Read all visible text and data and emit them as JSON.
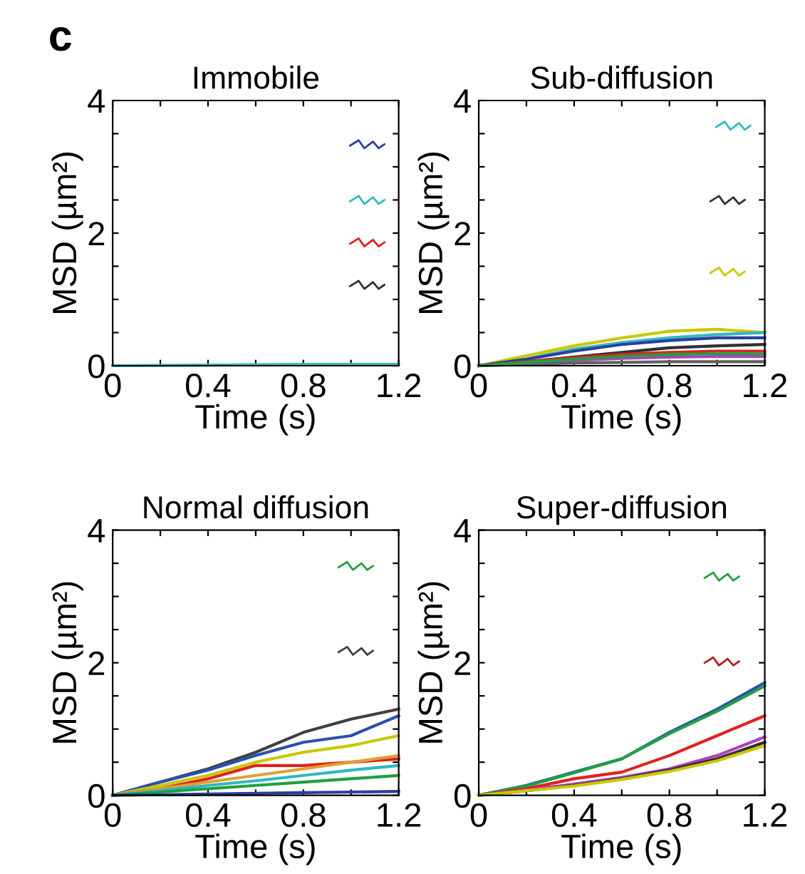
{
  "chart_data": [
    {
      "type": "line",
      "title": "Immobile",
      "xlabel": "Time (s)",
      "ylabel": "MSD (µm²)",
      "annotations": [
        "c"
      ],
      "xlim": [
        0,
        1.2
      ],
      "ylim": [
        0,
        4
      ],
      "xticks": [
        0,
        {
          "value": 0.2,
          "label": null
        },
        0.4,
        {
          "value": 0.6,
          "label": null
        },
        0.8,
        {
          "value": 1.0,
          "label": null
        },
        1.2
      ],
      "yticks": [
        0,
        {
          "value": 0.5,
          "label": null
        },
        {
          "value": 1,
          "label": null
        },
        {
          "value": 1.5,
          "label": null
        },
        2,
        {
          "value": 2.5,
          "label": null
        },
        {
          "value": 3,
          "label": null
        },
        {
          "value": 3.5,
          "label": null
        },
        4
      ],
      "grid": false,
      "x": [
        0,
        0.4,
        0.8,
        1.2
      ],
      "series": [
        {
          "color": "#30b8c0",
          "values": [
            0,
            0.01,
            0.02,
            0.02
          ]
        }
      ]
    },
    {
      "type": "line",
      "title": "Sub-diffusion",
      "xlabel": "Time (s)",
      "ylabel": "MSD (µm²)",
      "xlim": [
        0,
        1.2
      ],
      "ylim": [
        0,
        4
      ],
      "xticks": [
        0,
        {
          "value": 0.2,
          "label": null
        },
        0.4,
        {
          "value": 0.6,
          "label": null
        },
        0.8,
        {
          "value": 1.0,
          "label": null
        },
        1.2
      ],
      "yticks": [
        0,
        {
          "value": 0.5,
          "label": null
        },
        {
          "value": 1,
          "label": null
        },
        {
          "value": 1.5,
          "label": null
        },
        2,
        {
          "value": 2.5,
          "label": null
        },
        {
          "value": 3,
          "label": null
        },
        {
          "value": 3.5,
          "label": null
        },
        4
      ],
      "grid": false,
      "x": [
        0,
        0.2,
        0.4,
        0.6,
        0.8,
        1.0,
        1.2
      ],
      "series": [
        {
          "color": "#c8c800",
          "values": [
            0,
            0.15,
            0.3,
            0.42,
            0.52,
            0.55,
            0.5
          ]
        },
        {
          "color": "#30b8c0",
          "values": [
            0,
            0.1,
            0.25,
            0.35,
            0.42,
            0.47,
            0.5
          ]
        },
        {
          "color": "#2a3fa0",
          "values": [
            0,
            0.1,
            0.22,
            0.32,
            0.38,
            0.42,
            0.42
          ]
        },
        {
          "color": "#303030",
          "values": [
            0,
            0.06,
            0.13,
            0.2,
            0.27,
            0.3,
            0.32
          ]
        },
        {
          "color": "#e02020",
          "values": [
            0,
            0.06,
            0.12,
            0.17,
            0.2,
            0.22,
            0.22
          ]
        },
        {
          "color": "#b040c0",
          "values": [
            0,
            0.04,
            0.08,
            0.11,
            0.13,
            0.14,
            0.14
          ]
        },
        {
          "color": "#606060",
          "values": [
            0,
            0.02,
            0.04,
            0.05,
            0.06,
            0.06,
            0.06
          ]
        },
        {
          "color": "#20a040",
          "values": [
            0,
            0.05,
            0.1,
            0.14,
            0.17,
            0.18,
            0.18
          ]
        }
      ]
    },
    {
      "type": "line",
      "title": "Normal diffusion",
      "xlabel": "Time (s)",
      "ylabel": "MSD (µm²)",
      "xlim": [
        0,
        1.2
      ],
      "ylim": [
        0,
        4
      ],
      "xticks": [
        0,
        {
          "value": 0.2,
          "label": null
        },
        0.4,
        {
          "value": 0.6,
          "label": null
        },
        0.8,
        {
          "value": 1.0,
          "label": null
        },
        1.2
      ],
      "yticks": [
        0,
        {
          "value": 0.5,
          "label": null
        },
        {
          "value": 1,
          "label": null
        },
        {
          "value": 1.5,
          "label": null
        },
        2,
        {
          "value": 2.5,
          "label": null
        },
        {
          "value": 3,
          "label": null
        },
        {
          "value": 3.5,
          "label": null
        },
        4
      ],
      "grid": false,
      "x": [
        0,
        0.2,
        0.4,
        0.6,
        0.8,
        1.0,
        1.2
      ],
      "series": [
        {
          "color": "#404040",
          "values": [
            0,
            0.2,
            0.4,
            0.65,
            0.95,
            1.15,
            1.3
          ]
        },
        {
          "color": "#2a50b0",
          "values": [
            0,
            0.2,
            0.38,
            0.6,
            0.8,
            0.9,
            1.2
          ]
        },
        {
          "color": "#c8c800",
          "values": [
            0,
            0.15,
            0.3,
            0.5,
            0.65,
            0.75,
            0.9
          ]
        },
        {
          "color": "#e02020",
          "values": [
            0,
            0.1,
            0.25,
            0.45,
            0.45,
            0.5,
            0.55
          ]
        },
        {
          "color": "#e0a030",
          "values": [
            0,
            0.1,
            0.2,
            0.3,
            0.4,
            0.5,
            0.6
          ]
        },
        {
          "color": "#30b8c0",
          "values": [
            0,
            0.07,
            0.15,
            0.22,
            0.3,
            0.38,
            0.45
          ]
        },
        {
          "color": "#20a040",
          "values": [
            0,
            0.05,
            0.1,
            0.15,
            0.2,
            0.25,
            0.3
          ]
        },
        {
          "color": "#2a3fa0",
          "values": [
            0,
            0.01,
            0.02,
            0.03,
            0.04,
            0.05,
            0.06
          ]
        }
      ]
    },
    {
      "type": "line",
      "title": "Super-diffusion",
      "xlabel": "Time (s)",
      "ylabel": "MSD (µm²)",
      "xlim": [
        0,
        1.2
      ],
      "ylim": [
        0,
        4
      ],
      "xticks": [
        0,
        {
          "value": 0.2,
          "label": null
        },
        0.4,
        {
          "value": 0.6,
          "label": null
        },
        0.8,
        {
          "value": 1.0,
          "label": null
        },
        1.2
      ],
      "yticks": [
        0,
        {
          "value": 0.5,
          "label": null
        },
        {
          "value": 1,
          "label": null
        },
        {
          "value": 1.5,
          "label": null
        },
        2,
        {
          "value": 2.5,
          "label": null
        },
        {
          "value": 3,
          "label": null
        },
        {
          "value": 3.5,
          "label": null
        },
        4
      ],
      "grid": false,
      "x": [
        0,
        0.2,
        0.4,
        0.6,
        0.8,
        1.0,
        1.2
      ],
      "series": [
        {
          "color": "#2a50b0",
          "values": [
            0,
            0.15,
            0.35,
            0.55,
            0.95,
            1.3,
            1.7
          ]
        },
        {
          "color": "#20a040",
          "values": [
            0,
            0.14,
            0.34,
            0.55,
            0.93,
            1.27,
            1.65
          ]
        },
        {
          "color": "#e02020",
          "values": [
            0,
            0.1,
            0.25,
            0.35,
            0.6,
            0.9,
            1.2
          ]
        },
        {
          "color": "#b040c0",
          "values": [
            0,
            0.08,
            0.17,
            0.27,
            0.4,
            0.6,
            0.88
          ]
        },
        {
          "color": "#303030",
          "values": [
            0,
            0.07,
            0.15,
            0.25,
            0.38,
            0.55,
            0.8
          ]
        },
        {
          "color": "#c8c800",
          "values": [
            0,
            0.07,
            0.14,
            0.24,
            0.36,
            0.52,
            0.75
          ]
        }
      ]
    }
  ]
}
